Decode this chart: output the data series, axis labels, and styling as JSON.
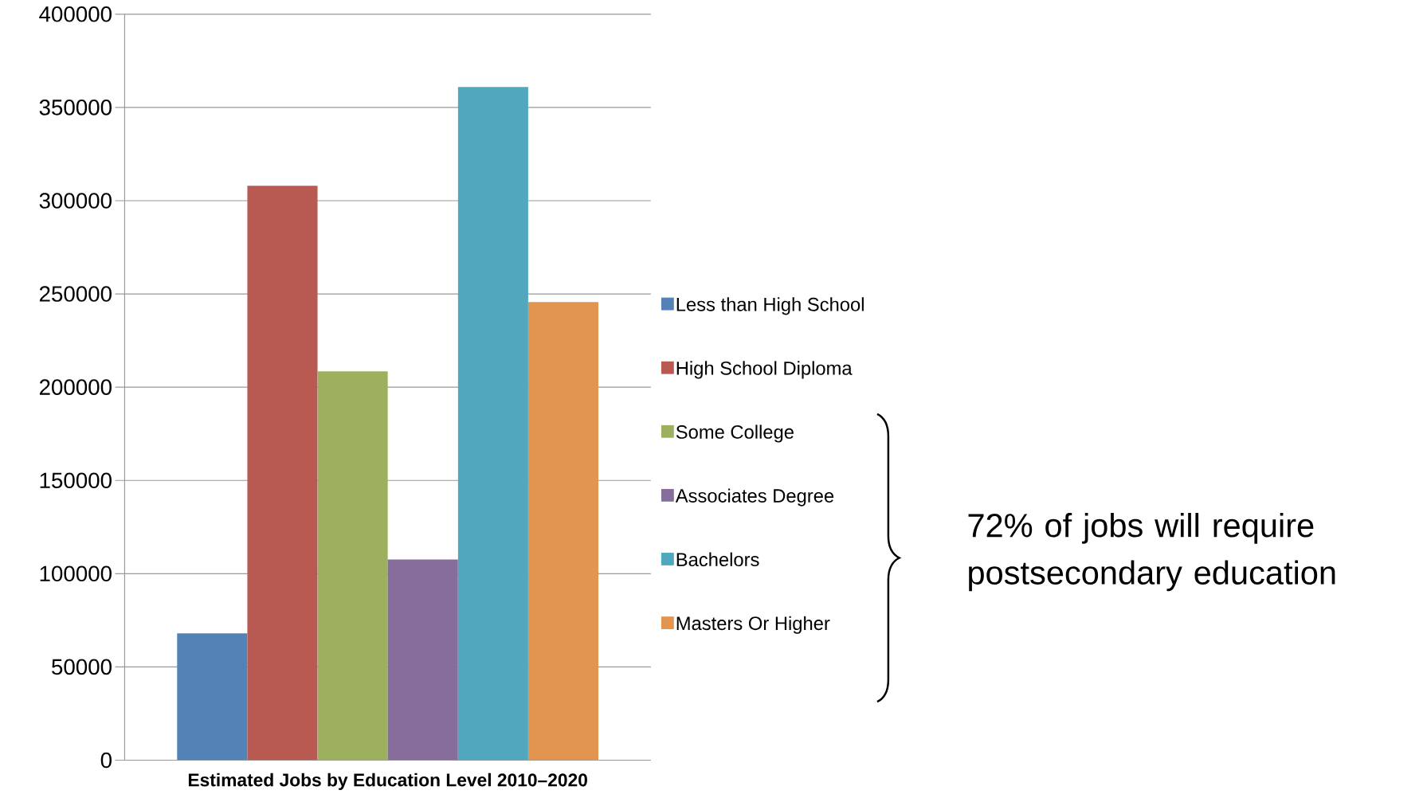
{
  "chart_data": {
    "type": "bar",
    "categories": [
      null
    ],
    "xlabel": "Estimated Jobs by Education Level 2010–2020",
    "ylim": [
      0,
      400000
    ],
    "yticks": [
      0,
      50000,
      100000,
      150000,
      200000,
      250000,
      300000,
      350000,
      400000
    ],
    "grid": "y",
    "legend": "right",
    "annotations": [
      "72% of jobs will require postsecondary education"
    ],
    "series": [
      {
        "name": "Less than High School",
        "color": "#5382b7",
        "values": [
          68000
        ]
      },
      {
        "name": "High School Diploma",
        "color": "#b85a52",
        "values": [
          308000
        ]
      },
      {
        "name": "Some College",
        "color": "#9db05e",
        "values": [
          208500
        ]
      },
      {
        "name": "Associates Degree",
        "color": "#866d9c",
        "values": [
          107600
        ]
      },
      {
        "name": "Bachelors",
        "color": "#50a7be",
        "values": [
          361000
        ]
      },
      {
        "name": "Masters Or Higher",
        "color": "#e2954e",
        "values": [
          245600
        ]
      }
    ]
  }
}
